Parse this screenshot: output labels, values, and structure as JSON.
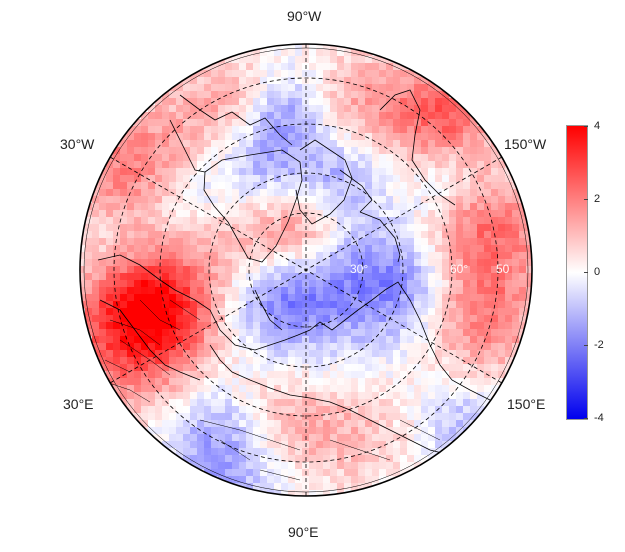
{
  "map": {
    "projection": "north-polar-stereographic",
    "lon_labels": [
      {
        "id": "lon-90w",
        "text": "90°W"
      },
      {
        "id": "lon-30w",
        "text": "30°W"
      },
      {
        "id": "lon-150w",
        "text": "150°W"
      },
      {
        "id": "lon-30e",
        "text": "30°E"
      },
      {
        "id": "lon-150e",
        "text": "150°E"
      },
      {
        "id": "lon-90e",
        "text": "90°E"
      }
    ],
    "lat_labels": [
      "30°",
      "60°",
      "50"
    ],
    "colors": {
      "negative": "#0000ff",
      "zero": "#ffffff",
      "positive": "#ff0000",
      "graticule": "#000000"
    }
  },
  "colorbar": {
    "min": -4,
    "max": 4,
    "ticks": [
      "4",
      "2",
      "0",
      "-2",
      "-4"
    ],
    "tick_values": [
      4,
      2,
      0,
      -2,
      -4
    ]
  }
}
